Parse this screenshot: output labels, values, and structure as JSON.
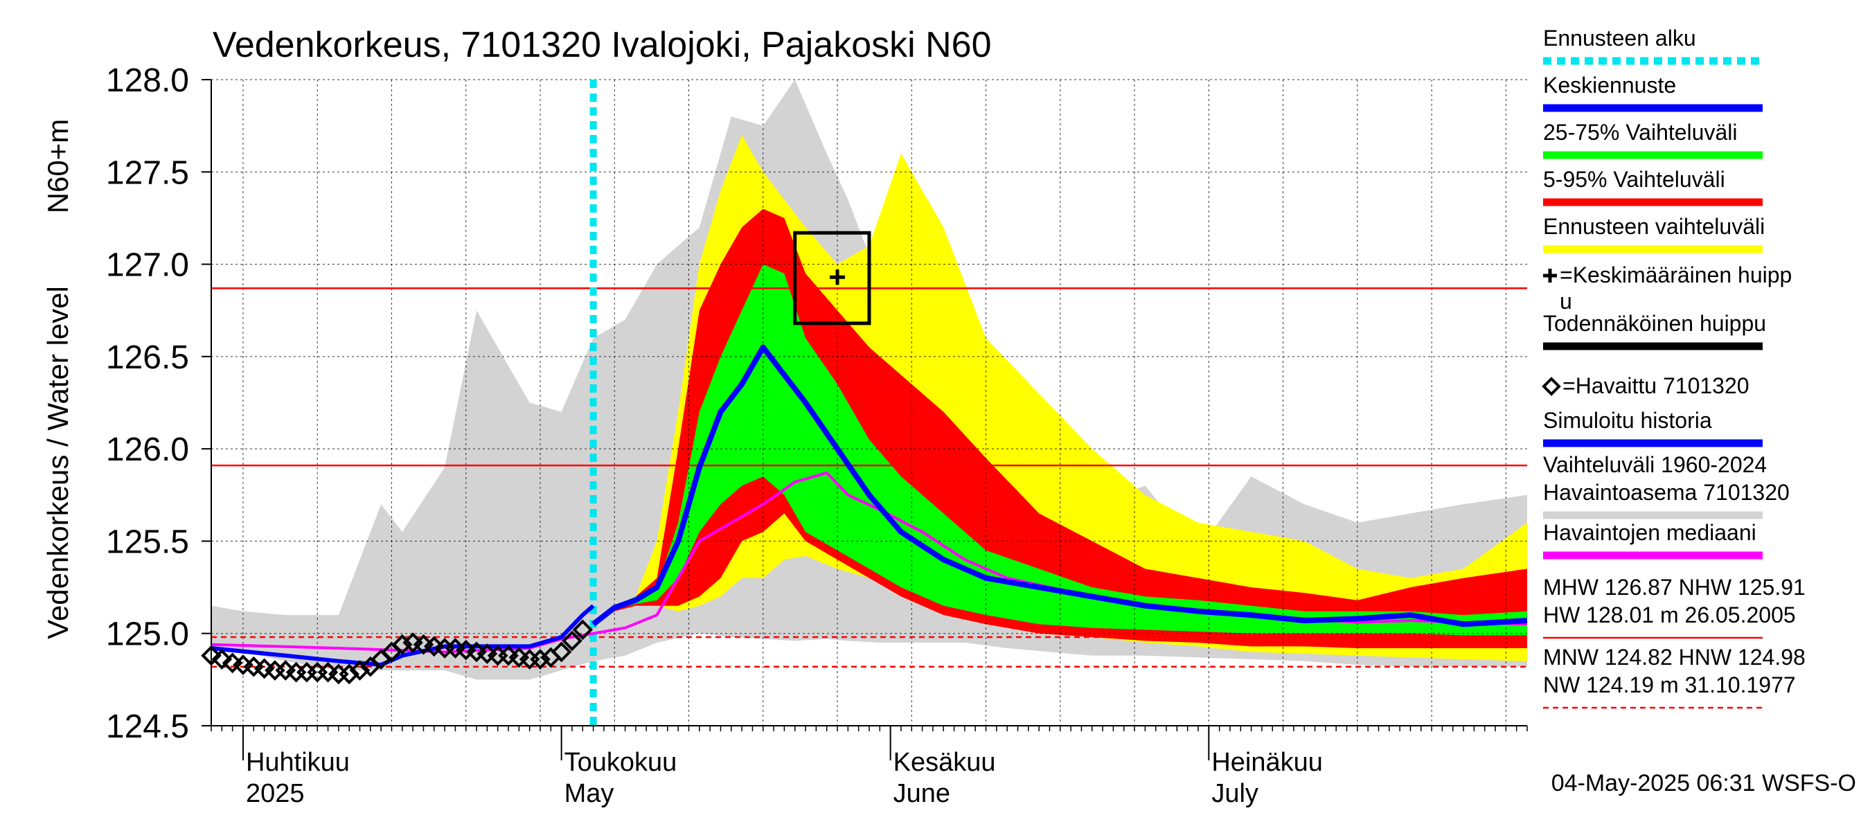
{
  "chart_data": {
    "type": "line",
    "title": "Vedenkorkeus, 7101320 Ivalojoki, Pajakoski N60",
    "ylabel_outer": "Vedenkorkeus / Water level",
    "ylabel_inner": "N60+m",
    "ylim": [
      124.5,
      128.0
    ],
    "y_ticks": [
      "124.5",
      "125.0",
      "125.5",
      "126.0",
      "126.5",
      "127.0",
      "127.5",
      "128.0"
    ],
    "x_axis": "date",
    "xlim": [
      "2025-03-29",
      "2025-07-31"
    ],
    "grid": true,
    "month_labels": [
      {
        "fi": "Huhtikuu",
        "en": "2025",
        "date": "2025-04-01"
      },
      {
        "fi": "Toukokuu",
        "en": "May",
        "date": "2025-05-01"
      },
      {
        "fi": "Kesäkuu",
        "en": "June",
        "date": "2025-06-01"
      },
      {
        "fi": "Heinäkuu",
        "en": "July",
        "date": "2025-07-01"
      }
    ],
    "forecast_start": "2025-05-04",
    "reference_lines": [
      {
        "name": "MHW",
        "value": 126.87,
        "style": "solid"
      },
      {
        "name": "NHW",
        "value": 125.91,
        "style": "solid"
      },
      {
        "name": "HNW",
        "value": 124.98,
        "style": "dashed"
      },
      {
        "name": "MNW",
        "value": 124.82,
        "style": "dashed"
      }
    ],
    "dates": [
      "2025-03-29",
      "2025-04-01",
      "2025-04-05",
      "2025-04-10",
      "2025-04-14",
      "2025-04-16",
      "2025-04-20",
      "2025-04-23",
      "2025-04-26",
      "2025-04-28",
      "2025-05-01",
      "2025-05-04",
      "2025-05-07",
      "2025-05-10",
      "2025-05-14",
      "2025-05-17",
      "2025-05-20",
      "2025-05-23",
      "2025-05-26",
      "2025-05-28",
      "2025-05-31",
      "2025-06-04",
      "2025-06-08",
      "2025-06-12",
      "2025-06-16",
      "2025-06-20",
      "2025-06-25",
      "2025-06-30",
      "2025-07-05",
      "2025-07-10",
      "2025-07-15",
      "2025-07-20",
      "2025-07-25",
      "2025-07-31"
    ],
    "historical_range": {
      "name": "Vaihteluväli 1960-2024 Havaintoasema 7101320",
      "upper": [
        125.15,
        125.12,
        125.1,
        125.1,
        125.7,
        125.55,
        125.9,
        126.75,
        126.45,
        126.25,
        126.2,
        126.6,
        126.7,
        127.0,
        127.2,
        127.8,
        127.75,
        128.0,
        127.6,
        127.35,
        126.9,
        126.65,
        126.5,
        126.2,
        125.85,
        125.7,
        125.8,
        125.45,
        125.85,
        125.7,
        125.6,
        125.65,
        125.7,
        125.75
      ],
      "lower": [
        124.93,
        124.9,
        124.85,
        124.8,
        124.8,
        124.8,
        124.8,
        124.75,
        124.75,
        124.75,
        124.8,
        124.85,
        124.88,
        124.95,
        125.0,
        124.98,
        124.97,
        124.96,
        124.97,
        124.96,
        124.95,
        124.95,
        124.95,
        124.92,
        124.9,
        124.88,
        124.88,
        124.87,
        124.86,
        124.85,
        124.83,
        124.82,
        124.82,
        124.82
      ]
    },
    "forecast_dates": [
      "2025-05-04",
      "2025-05-06",
      "2025-05-08",
      "2025-05-10",
      "2025-05-12",
      "2025-05-14",
      "2025-05-16",
      "2025-05-18",
      "2025-05-20",
      "2025-05-22",
      "2025-05-24",
      "2025-05-27",
      "2025-05-30",
      "2025-06-02",
      "2025-06-06",
      "2025-06-10",
      "2025-06-15",
      "2025-06-20",
      "2025-06-25",
      "2025-06-30",
      "2025-07-05",
      "2025-07-10",
      "2025-07-15",
      "2025-07-20",
      "2025-07-25",
      "2025-07-31"
    ],
    "forecast_range": {
      "name": "Ennusteen vaihteluväli",
      "upper": [
        125.05,
        125.15,
        125.2,
        125.5,
        126.2,
        127.0,
        127.4,
        127.7,
        127.5,
        127.35,
        127.2,
        127.0,
        127.1,
        127.6,
        127.2,
        126.6,
        126.3,
        126.0,
        125.75,
        125.6,
        125.55,
        125.5,
        125.35,
        125.3,
        125.35,
        125.6
      ],
      "lower": [
        125.05,
        125.12,
        125.15,
        125.15,
        125.12,
        125.15,
        125.2,
        125.3,
        125.3,
        125.4,
        125.42,
        125.35,
        125.3,
        125.25,
        125.15,
        125.05,
        125.0,
        124.98,
        124.95,
        124.93,
        124.9,
        124.89,
        124.88,
        124.87,
        124.86,
        124.85
      ]
    },
    "range_5_95": {
      "name": "5-95% Vaihteluväli",
      "upper": [
        125.05,
        125.15,
        125.2,
        125.3,
        126.0,
        126.75,
        127.0,
        127.2,
        127.3,
        127.25,
        126.95,
        126.75,
        126.55,
        126.4,
        126.2,
        125.95,
        125.65,
        125.5,
        125.35,
        125.3,
        125.25,
        125.22,
        125.18,
        125.25,
        125.3,
        125.35
      ],
      "lower": [
        125.05,
        125.12,
        125.15,
        125.15,
        125.15,
        125.2,
        125.3,
        125.5,
        125.55,
        125.65,
        125.5,
        125.4,
        125.3,
        125.2,
        125.1,
        125.05,
        125.0,
        124.98,
        124.96,
        124.95,
        124.93,
        124.93,
        124.92,
        124.92,
        124.92,
        124.92
      ]
    },
    "range_25_75": {
      "name": "25-75% Vaihteluväli",
      "upper": [
        125.05,
        125.15,
        125.2,
        125.25,
        125.6,
        126.2,
        126.5,
        126.75,
        127.0,
        126.95,
        126.6,
        126.35,
        126.05,
        125.85,
        125.65,
        125.45,
        125.35,
        125.25,
        125.2,
        125.18,
        125.15,
        125.12,
        125.12,
        125.12,
        125.1,
        125.12
      ],
      "lower": [
        125.05,
        125.13,
        125.16,
        125.18,
        125.3,
        125.55,
        125.7,
        125.8,
        125.85,
        125.75,
        125.55,
        125.45,
        125.35,
        125.25,
        125.15,
        125.1,
        125.05,
        125.03,
        125.02,
        125.01,
        125.0,
        125.0,
        125.0,
        125.0,
        124.99,
        124.99
      ]
    },
    "mean_forecast": {
      "name": "Keskiennuste",
      "values": [
        125.05,
        125.14,
        125.18,
        125.25,
        125.5,
        125.9,
        126.2,
        126.35,
        126.55,
        126.4,
        126.25,
        126.0,
        125.75,
        125.55,
        125.4,
        125.3,
        125.25,
        125.2,
        125.15,
        125.12,
        125.1,
        125.07,
        125.08,
        125.1,
        125.05,
        125.07
      ]
    },
    "simulated_history": {
      "name": "Simuloitu historia",
      "dates": [
        "2025-03-29",
        "2025-04-05",
        "2025-04-10",
        "2025-04-14",
        "2025-04-16",
        "2025-04-20",
        "2025-04-24",
        "2025-04-28",
        "2025-05-01",
        "2025-05-03",
        "2025-05-04"
      ],
      "values": [
        124.92,
        124.88,
        124.85,
        124.83,
        124.88,
        124.93,
        124.93,
        124.93,
        124.98,
        125.1,
        125.15
      ]
    },
    "observed": {
      "name": "=Havaittu 7101320",
      "dates": [
        "2025-03-29",
        "2025-03-30",
        "2025-03-31",
        "2025-04-01",
        "2025-04-02",
        "2025-04-03",
        "2025-04-04",
        "2025-04-05",
        "2025-04-06",
        "2025-04-07",
        "2025-04-08",
        "2025-04-09",
        "2025-04-10",
        "2025-04-11",
        "2025-04-12",
        "2025-04-13",
        "2025-04-14",
        "2025-04-15",
        "2025-04-16",
        "2025-04-17",
        "2025-04-18",
        "2025-04-19",
        "2025-04-20",
        "2025-04-21",
        "2025-04-22",
        "2025-04-23",
        "2025-04-24",
        "2025-04-25",
        "2025-04-26",
        "2025-04-27",
        "2025-04-28",
        "2025-04-29",
        "2025-04-30",
        "2025-05-01",
        "2025-05-02",
        "2025-05-03"
      ],
      "values": [
        124.88,
        124.86,
        124.84,
        124.83,
        124.82,
        124.81,
        124.8,
        124.8,
        124.79,
        124.79,
        124.79,
        124.79,
        124.78,
        124.78,
        124.8,
        124.82,
        124.86,
        124.9,
        124.94,
        124.95,
        124.94,
        124.93,
        124.92,
        124.92,
        124.91,
        124.9,
        124.89,
        124.88,
        124.88,
        124.87,
        124.86,
        124.86,
        124.87,
        124.9,
        124.96,
        125.02
      ]
    },
    "observed_median": {
      "name": "Havaintojen mediaani",
      "dates": [
        "2025-03-29",
        "2025-04-10",
        "2025-04-20",
        "2025-04-28",
        "2025-05-01",
        "2025-05-04",
        "2025-05-07",
        "2025-05-10",
        "2025-05-14",
        "2025-05-17",
        "2025-05-20",
        "2025-05-23",
        "2025-05-26",
        "2025-05-28",
        "2025-05-31",
        "2025-06-04",
        "2025-06-08",
        "2025-06-12",
        "2025-06-16",
        "2025-06-20",
        "2025-06-25",
        "2025-06-30",
        "2025-07-05",
        "2025-07-10",
        "2025-07-15",
        "2025-07-20",
        "2025-07-25",
        "2025-07-31"
      ],
      "values": [
        124.94,
        124.92,
        124.9,
        124.92,
        124.97,
        125.0,
        125.03,
        125.1,
        125.5,
        125.6,
        125.7,
        125.82,
        125.87,
        125.75,
        125.67,
        125.55,
        125.4,
        125.3,
        125.25,
        125.2,
        125.15,
        125.12,
        125.1,
        125.08,
        125.06,
        125.07,
        125.06,
        125.05
      ]
    },
    "mean_peak": {
      "name": "=Keskimääräinen huippu",
      "date": "2025-05-27",
      "value": 126.93
    },
    "probable_peak": {
      "name": "Todennäköinen huippu",
      "date_start": "2025-05-23",
      "date_end": "2025-05-30",
      "lower": 126.68,
      "upper": 127.17
    }
  },
  "legend": [
    {
      "label": "Ennusteen alku",
      "color": "#00e5ee",
      "style": "dotted"
    },
    {
      "label": "Keskiennuste",
      "color": "#0000ff",
      "style": "solid"
    },
    {
      "label": "25-75% Vaihteluväli",
      "color": "#00ff00",
      "style": "solid"
    },
    {
      "label": "5-95% Vaihteluväli",
      "color": "#ff0000",
      "style": "solid"
    },
    {
      "label": "Ennusteen vaihteluväli",
      "color": "#ffff00",
      "style": "solid"
    },
    {
      "label_lines": [
        "=Keskimääräinen huipp",
        "u"
      ],
      "marker": "plus",
      "color": "#000000"
    },
    {
      "label": "Todennäköinen huippu",
      "color": "#000000",
      "style": "solid"
    },
    {
      "label": "=Havaittu 7101320",
      "marker": "diamond",
      "color": "#000000"
    },
    {
      "label": "Simuloitu historia",
      "color": "#0000ff",
      "style": "solid"
    },
    {
      "label_lines": [
        "Vaihteluväli 1960-2024",
        " Havaintoasema 7101320"
      ],
      "color": "#d3d3d3",
      "style": "solid"
    },
    {
      "label": "Havaintojen mediaani",
      "color": "#ff00ff",
      "style": "solid"
    },
    {
      "label_lines": [
        "MHW 126.87 NHW 125.91",
        "HW 128.01 m 26.05.2005"
      ],
      "color": "#ff0000",
      "style": "solid"
    },
    {
      "label_lines": [
        "MNW 124.82 HNW 124.98",
        "NW 124.19 m 31.10.1977"
      ],
      "color": "#ff0000",
      "style": "dashed"
    }
  ],
  "colors": {
    "historical": "#d3d3d3",
    "forecast_range": "#ffff00",
    "range_5_95": "#ff0000",
    "range_25_75": "#00ff00",
    "mean": "#0000ff",
    "median": "#ff00ff",
    "forecast_start": "#00e5ee",
    "reference": "#ff0000"
  },
  "footer": "04-May-2025 06:31 WSFS-O"
}
